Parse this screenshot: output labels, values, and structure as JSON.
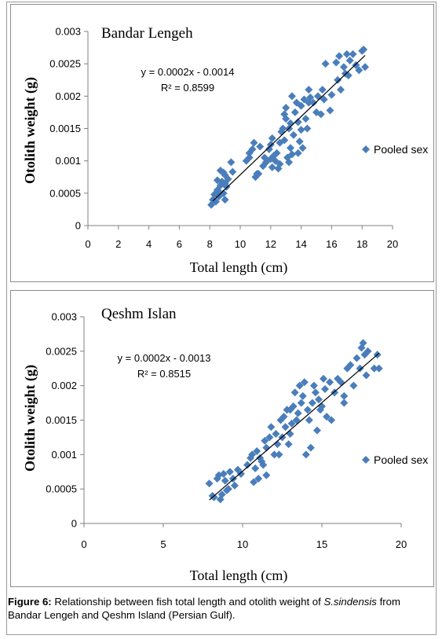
{
  "chart_data": [
    {
      "type": "scatter",
      "title": "Bandar Lengeh",
      "xlabel": "Total length (cm)",
      "ylabel": "Otolith  weight (g)",
      "xlim": [
        0,
        20
      ],
      "ylim": [
        0,
        0.003
      ],
      "xticks": [
        "0",
        "2",
        "4",
        "6",
        "8",
        "10",
        "12",
        "14",
        "16",
        "18",
        "20"
      ],
      "yticks": [
        "0",
        "0.0005",
        "0.001",
        "0.0015",
        "0.002",
        "0.0025",
        "0.003"
      ],
      "series_name": "Pooled sex",
      "marker_color": "#4a7ebb",
      "equation": "y = 0.0002x - 0.0014",
      "r2": "R² = 0.8599",
      "trendline": [
        [
          8.2,
          0.00038
        ],
        [
          18.2,
          0.00263
        ]
      ],
      "legend": "right",
      "grid": false,
      "points": [
        [
          8.1,
          0.00032
        ],
        [
          8.2,
          0.0004
        ],
        [
          8.3,
          0.00048
        ],
        [
          8.4,
          0.00037
        ],
        [
          8.5,
          0.00055
        ],
        [
          8.6,
          0.00045
        ],
        [
          8.7,
          0.00062
        ],
        [
          8.5,
          0.0007
        ],
        [
          8.8,
          0.00068
        ],
        [
          8.9,
          0.0005
        ],
        [
          9.0,
          0.00078
        ],
        [
          8.7,
          0.00085
        ],
        [
          9.0,
          0.0004
        ],
        [
          9.1,
          0.0006
        ],
        [
          9.2,
          0.00072
        ],
        [
          9.4,
          0.00098
        ],
        [
          9.5,
          0.00083
        ],
        [
          8.9,
          0.00082
        ],
        [
          8.6,
          0.00052
        ],
        [
          9.0,
          0.00065
        ],
        [
          10.4,
          0.001
        ],
        [
          10.6,
          0.00112
        ],
        [
          10.8,
          0.00118
        ],
        [
          10.9,
          0.00128
        ],
        [
          11.0,
          0.00075
        ],
        [
          11.2,
          0.0008
        ],
        [
          11.3,
          0.00122
        ],
        [
          11.5,
          0.00092
        ],
        [
          11.6,
          0.00105
        ],
        [
          11.7,
          0.00098
        ],
        [
          11.9,
          0.00118
        ],
        [
          12.0,
          0.00125
        ],
        [
          12.1,
          0.00135
        ],
        [
          12.1,
          0.0009
        ],
        [
          12.2,
          0.00108
        ],
        [
          12.3,
          0.001
        ],
        [
          12.4,
          0.00112
        ],
        [
          12.5,
          0.00088
        ],
        [
          12.6,
          0.00095
        ],
        [
          12.6,
          0.00128
        ],
        [
          12.7,
          0.00145
        ],
        [
          12.8,
          0.0015
        ],
        [
          12.9,
          0.00132
        ],
        [
          12.9,
          0.00172
        ],
        [
          13.0,
          0.00165
        ],
        [
          13.0,
          0.00182
        ],
        [
          13.1,
          0.00105
        ],
        [
          13.2,
          0.00098
        ],
        [
          13.2,
          0.0015
        ],
        [
          13.3,
          0.00158
        ],
        [
          13.4,
          0.0011
        ],
        [
          13.5,
          0.0014
        ],
        [
          13.4,
          0.002
        ],
        [
          13.6,
          0.00175
        ],
        [
          13.7,
          0.0019
        ],
        [
          13.8,
          0.0016
        ],
        [
          13.8,
          0.00112
        ],
        [
          13.9,
          0.0013
        ],
        [
          14.0,
          0.00148
        ],
        [
          14.0,
          0.00185
        ],
        [
          14.1,
          0.0012
        ],
        [
          14.2,
          0.00195
        ],
        [
          14.3,
          0.00165
        ],
        [
          14.4,
          0.0015
        ],
        [
          14.5,
          0.0019
        ],
        [
          14.6,
          0.00198
        ],
        [
          14.8,
          0.0019
        ],
        [
          15.0,
          0.00175
        ],
        [
          15.1,
          0.002
        ],
        [
          15.3,
          0.00172
        ],
        [
          15.4,
          0.0021
        ],
        [
          15.5,
          0.00195
        ],
        [
          15.6,
          0.0025
        ],
        [
          15.9,
          0.00178
        ],
        [
          16.0,
          0.00202
        ],
        [
          16.3,
          0.00252
        ],
        [
          16.4,
          0.00225
        ],
        [
          16.5,
          0.00262
        ],
        [
          16.6,
          0.0021
        ],
        [
          16.8,
          0.00245
        ],
        [
          17.0,
          0.00265
        ],
        [
          17.1,
          0.00232
        ],
        [
          17.2,
          0.00255
        ],
        [
          17.4,
          0.00265
        ],
        [
          17.6,
          0.00248
        ],
        [
          17.8,
          0.0024
        ],
        [
          18.0,
          0.0027
        ],
        [
          18.1,
          0.00272
        ],
        [
          18.2,
          0.00245
        ],
        [
          14.5,
          0.0021
        ],
        [
          10.6,
          0.00105
        ],
        [
          11.1,
          0.0008
        ],
        [
          13.3,
          0.0012
        ],
        [
          12.0,
          0.00103
        ],
        [
          16.9,
          0.00235
        ]
      ]
    },
    {
      "type": "scatter",
      "title": "Qeshm Islan",
      "xlabel": "Total length (cm)",
      "ylabel": "Otolith  weight (g)",
      "xlim": [
        0,
        20
      ],
      "ylim": [
        0,
        0.003
      ],
      "xticks": [
        "0",
        "5",
        "10",
        "15",
        "20"
      ],
      "yticks": [
        "0",
        "0.0005",
        "0.001",
        "0.0015",
        "0.002",
        "0.0025",
        "0.003"
      ],
      "series_name": "Pooled sex",
      "marker_color": "#4a7ebb",
      "equation": "y = 0.0002x - 0.0013",
      "r2": "R² = 0.8515",
      "trendline": [
        [
          7.9,
          0.00034
        ],
        [
          18.6,
          0.00247
        ]
      ],
      "legend": "right",
      "grid": false,
      "points": [
        [
          7.9,
          0.00058
        ],
        [
          8.1,
          0.0004
        ],
        [
          8.2,
          0.00038
        ],
        [
          8.4,
          0.00065
        ],
        [
          8.5,
          0.0007
        ],
        [
          8.6,
          0.00035
        ],
        [
          8.7,
          0.00042
        ],
        [
          8.8,
          0.00072
        ],
        [
          8.9,
          0.00062
        ],
        [
          9.0,
          0.00048
        ],
        [
          9.1,
          0.0005
        ],
        [
          9.2,
          0.00075
        ],
        [
          9.4,
          0.00065
        ],
        [
          9.5,
          0.00055
        ],
        [
          9.7,
          0.00078
        ],
        [
          9.9,
          0.00072
        ],
        [
          10.3,
          0.00085
        ],
        [
          10.5,
          0.00095
        ],
        [
          10.6,
          0.001
        ],
        [
          10.7,
          0.0006
        ],
        [
          10.8,
          0.0008
        ],
        [
          10.9,
          0.00105
        ],
        [
          11.0,
          0.00065
        ],
        [
          11.1,
          0.00095
        ],
        [
          11.3,
          0.00085
        ],
        [
          11.4,
          0.0012
        ],
        [
          11.5,
          0.0011
        ],
        [
          11.5,
          0.0007
        ],
        [
          11.7,
          0.00125
        ],
        [
          11.8,
          0.0014
        ],
        [
          12.0,
          0.001
        ],
        [
          12.1,
          0.0013
        ],
        [
          12.2,
          0.00115
        ],
        [
          12.4,
          0.0015
        ],
        [
          12.5,
          0.00125
        ],
        [
          12.6,
          0.00155
        ],
        [
          12.7,
          0.0014
        ],
        [
          12.8,
          0.00165
        ],
        [
          12.9,
          0.00115
        ],
        [
          13.0,
          0.0013
        ],
        [
          13.1,
          0.00145
        ],
        [
          13.2,
          0.0017
        ],
        [
          13.3,
          0.0019
        ],
        [
          13.4,
          0.0015
        ],
        [
          13.5,
          0.0016
        ],
        [
          13.6,
          0.002
        ],
        [
          13.7,
          0.00175
        ],
        [
          13.8,
          0.00185
        ],
        [
          13.9,
          0.00205
        ],
        [
          14.0,
          0.001
        ],
        [
          14.1,
          0.00165
        ],
        [
          14.2,
          0.0015
        ],
        [
          14.3,
          0.0011
        ],
        [
          14.4,
          0.00175
        ],
        [
          14.5,
          0.002
        ],
        [
          14.6,
          0.0019
        ],
        [
          14.7,
          0.00135
        ],
        [
          14.8,
          0.0018
        ],
        [
          15.0,
          0.0017
        ],
        [
          15.1,
          0.0021
        ],
        [
          15.2,
          0.00195
        ],
        [
          15.3,
          0.00155
        ],
        [
          15.5,
          0.00205
        ],
        [
          15.6,
          0.0015
        ],
        [
          15.8,
          0.0019
        ],
        [
          16.0,
          0.0021
        ],
        [
          16.2,
          0.00205
        ],
        [
          16.4,
          0.00185
        ],
        [
          16.6,
          0.00225
        ],
        [
          16.8,
          0.0023
        ],
        [
          17.0,
          0.002
        ],
        [
          17.2,
          0.0024
        ],
        [
          17.4,
          0.00225
        ],
        [
          17.5,
          0.00255
        ],
        [
          17.6,
          0.00262
        ],
        [
          17.7,
          0.00245
        ],
        [
          17.8,
          0.00215
        ],
        [
          17.9,
          0.0025
        ],
        [
          18.3,
          0.00225
        ],
        [
          18.5,
          0.00245
        ],
        [
          18.6,
          0.00225
        ],
        [
          13.0,
          0.00165
        ],
        [
          12.3,
          0.001
        ],
        [
          14.9,
          0.00165
        ],
        [
          11.2,
          0.0009
        ],
        [
          16.4,
          0.00175
        ]
      ]
    }
  ],
  "caption": {
    "label": "Figure 6:",
    "text": " Relationship between fish total length and otolith weight of ",
    "species": "S.sindensis",
    "text2": " from Bandar Lengeh and Qeshm Island (Persian Gulf)."
  }
}
